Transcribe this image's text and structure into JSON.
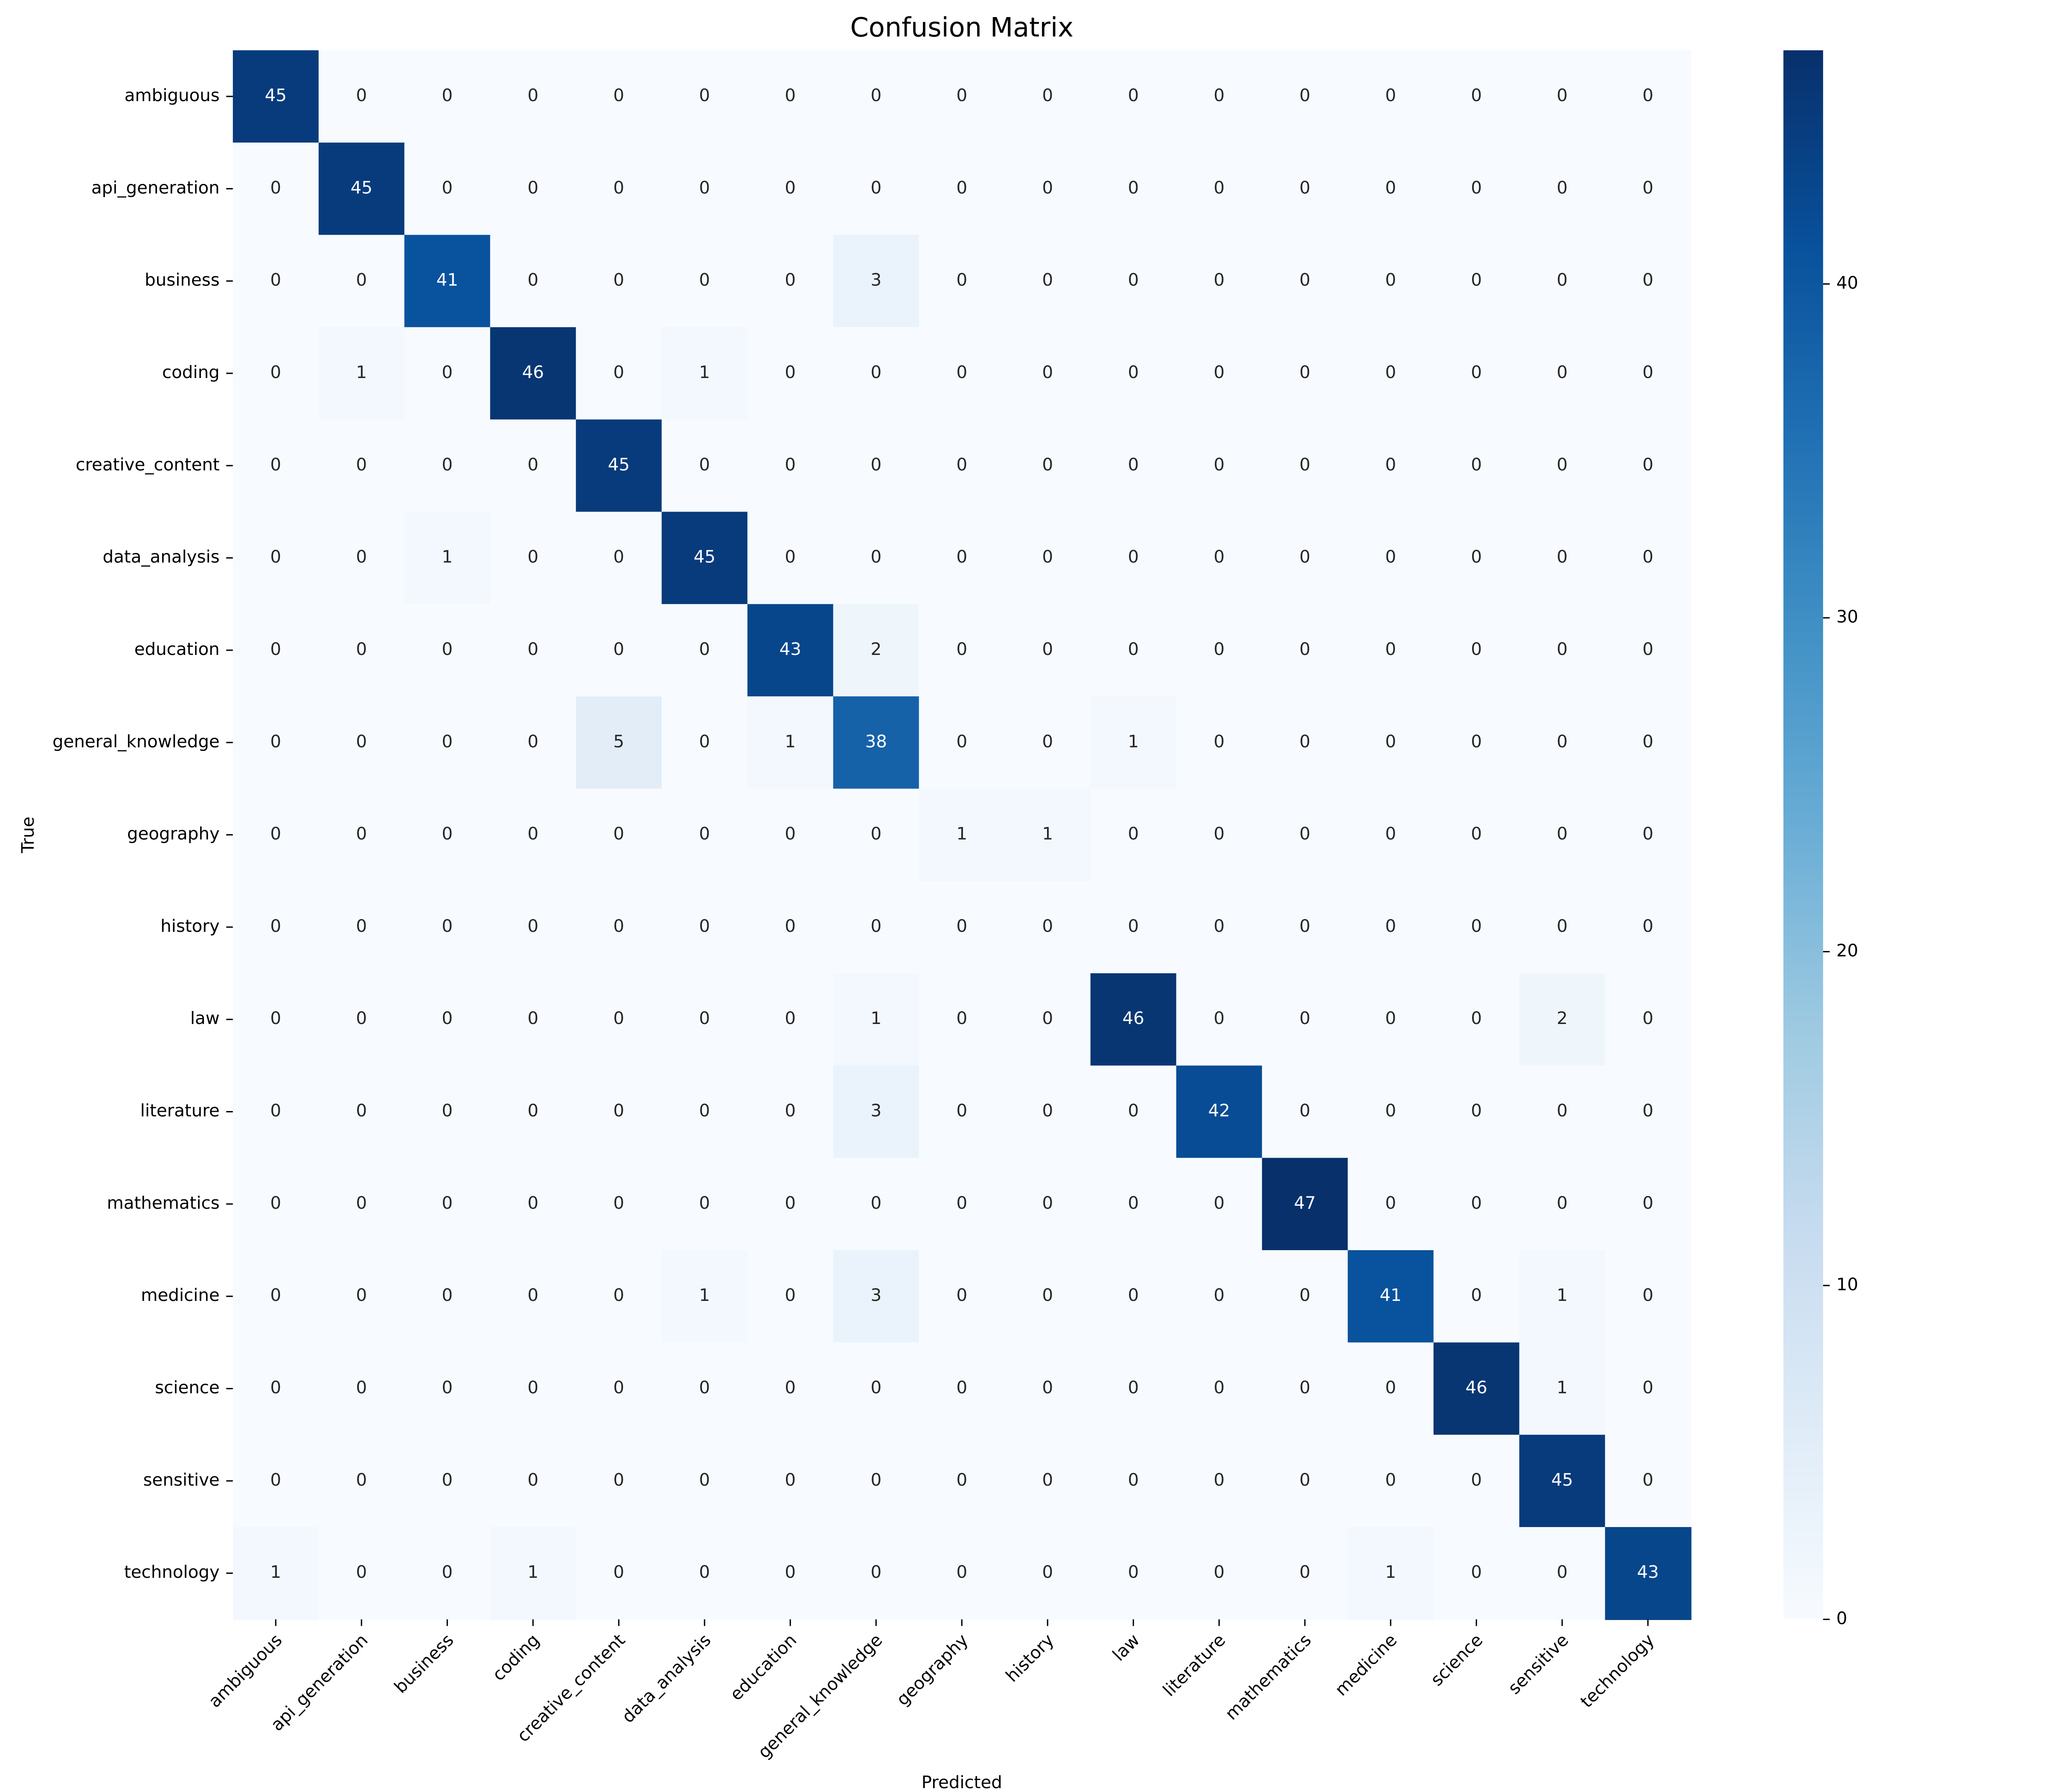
{
  "chart_data": {
    "type": "heatmap",
    "title": "Confusion Matrix",
    "x_label": "Predicted",
    "y_label": "True",
    "x_categories": [
      "ambiguous",
      "api_generation",
      "business",
      "coding",
      "creative_content",
      "data_analysis",
      "education",
      "general_knowledge",
      "geography",
      "history",
      "law",
      "literature",
      "mathematics",
      "medicine",
      "science",
      "sensitive",
      "technology"
    ],
    "y_categories": [
      "ambiguous",
      "api_generation",
      "business",
      "coding",
      "creative_content",
      "data_analysis",
      "education",
      "general_knowledge",
      "geography",
      "history",
      "law",
      "literature",
      "mathematics",
      "medicine",
      "science",
      "sensitive",
      "technology"
    ],
    "values": [
      [
        45,
        0,
        0,
        0,
        0,
        0,
        0,
        0,
        0,
        0,
        0,
        0,
        0,
        0,
        0,
        0,
        0
      ],
      [
        0,
        45,
        0,
        0,
        0,
        0,
        0,
        0,
        0,
        0,
        0,
        0,
        0,
        0,
        0,
        0,
        0
      ],
      [
        0,
        0,
        41,
        0,
        0,
        0,
        0,
        3,
        0,
        0,
        0,
        0,
        0,
        0,
        0,
        0,
        0
      ],
      [
        0,
        1,
        0,
        46,
        0,
        1,
        0,
        0,
        0,
        0,
        0,
        0,
        0,
        0,
        0,
        0,
        0
      ],
      [
        0,
        0,
        0,
        0,
        45,
        0,
        0,
        0,
        0,
        0,
        0,
        0,
        0,
        0,
        0,
        0,
        0
      ],
      [
        0,
        0,
        1,
        0,
        0,
        45,
        0,
        0,
        0,
        0,
        0,
        0,
        0,
        0,
        0,
        0,
        0
      ],
      [
        0,
        0,
        0,
        0,
        0,
        0,
        43,
        2,
        0,
        0,
        0,
        0,
        0,
        0,
        0,
        0,
        0
      ],
      [
        0,
        0,
        0,
        0,
        5,
        0,
        1,
        38,
        0,
        0,
        1,
        0,
        0,
        0,
        0,
        0,
        0
      ],
      [
        0,
        0,
        0,
        0,
        0,
        0,
        0,
        0,
        1,
        1,
        0,
        0,
        0,
        0,
        0,
        0,
        0
      ],
      [
        0,
        0,
        0,
        0,
        0,
        0,
        0,
        0,
        0,
        0,
        0,
        0,
        0,
        0,
        0,
        0,
        0
      ],
      [
        0,
        0,
        0,
        0,
        0,
        0,
        0,
        1,
        0,
        0,
        46,
        0,
        0,
        0,
        0,
        2,
        0
      ],
      [
        0,
        0,
        0,
        0,
        0,
        0,
        0,
        3,
        0,
        0,
        0,
        42,
        0,
        0,
        0,
        0,
        0
      ],
      [
        0,
        0,
        0,
        0,
        0,
        0,
        0,
        0,
        0,
        0,
        0,
        0,
        47,
        0,
        0,
        0,
        0
      ],
      [
        0,
        0,
        0,
        0,
        0,
        1,
        0,
        3,
        0,
        0,
        0,
        0,
        0,
        41,
        0,
        1,
        0
      ],
      [
        0,
        0,
        0,
        0,
        0,
        0,
        0,
        0,
        0,
        0,
        0,
        0,
        0,
        0,
        46,
        1,
        0
      ],
      [
        0,
        0,
        0,
        0,
        0,
        0,
        0,
        0,
        0,
        0,
        0,
        0,
        0,
        0,
        0,
        45,
        0
      ],
      [
        1,
        0,
        0,
        1,
        0,
        0,
        0,
        0,
        0,
        0,
        0,
        0,
        0,
        1,
        0,
        0,
        43
      ]
    ],
    "clim": [
      0,
      47
    ],
    "cticks": [
      0,
      10,
      20,
      30,
      40
    ],
    "colors": [
      "#f7fbff",
      "#deebf7",
      "#c6dbef",
      "#9ecae1",
      "#6baed6",
      "#4292c6",
      "#2171b5",
      "#08519c",
      "#08306b"
    ]
  }
}
